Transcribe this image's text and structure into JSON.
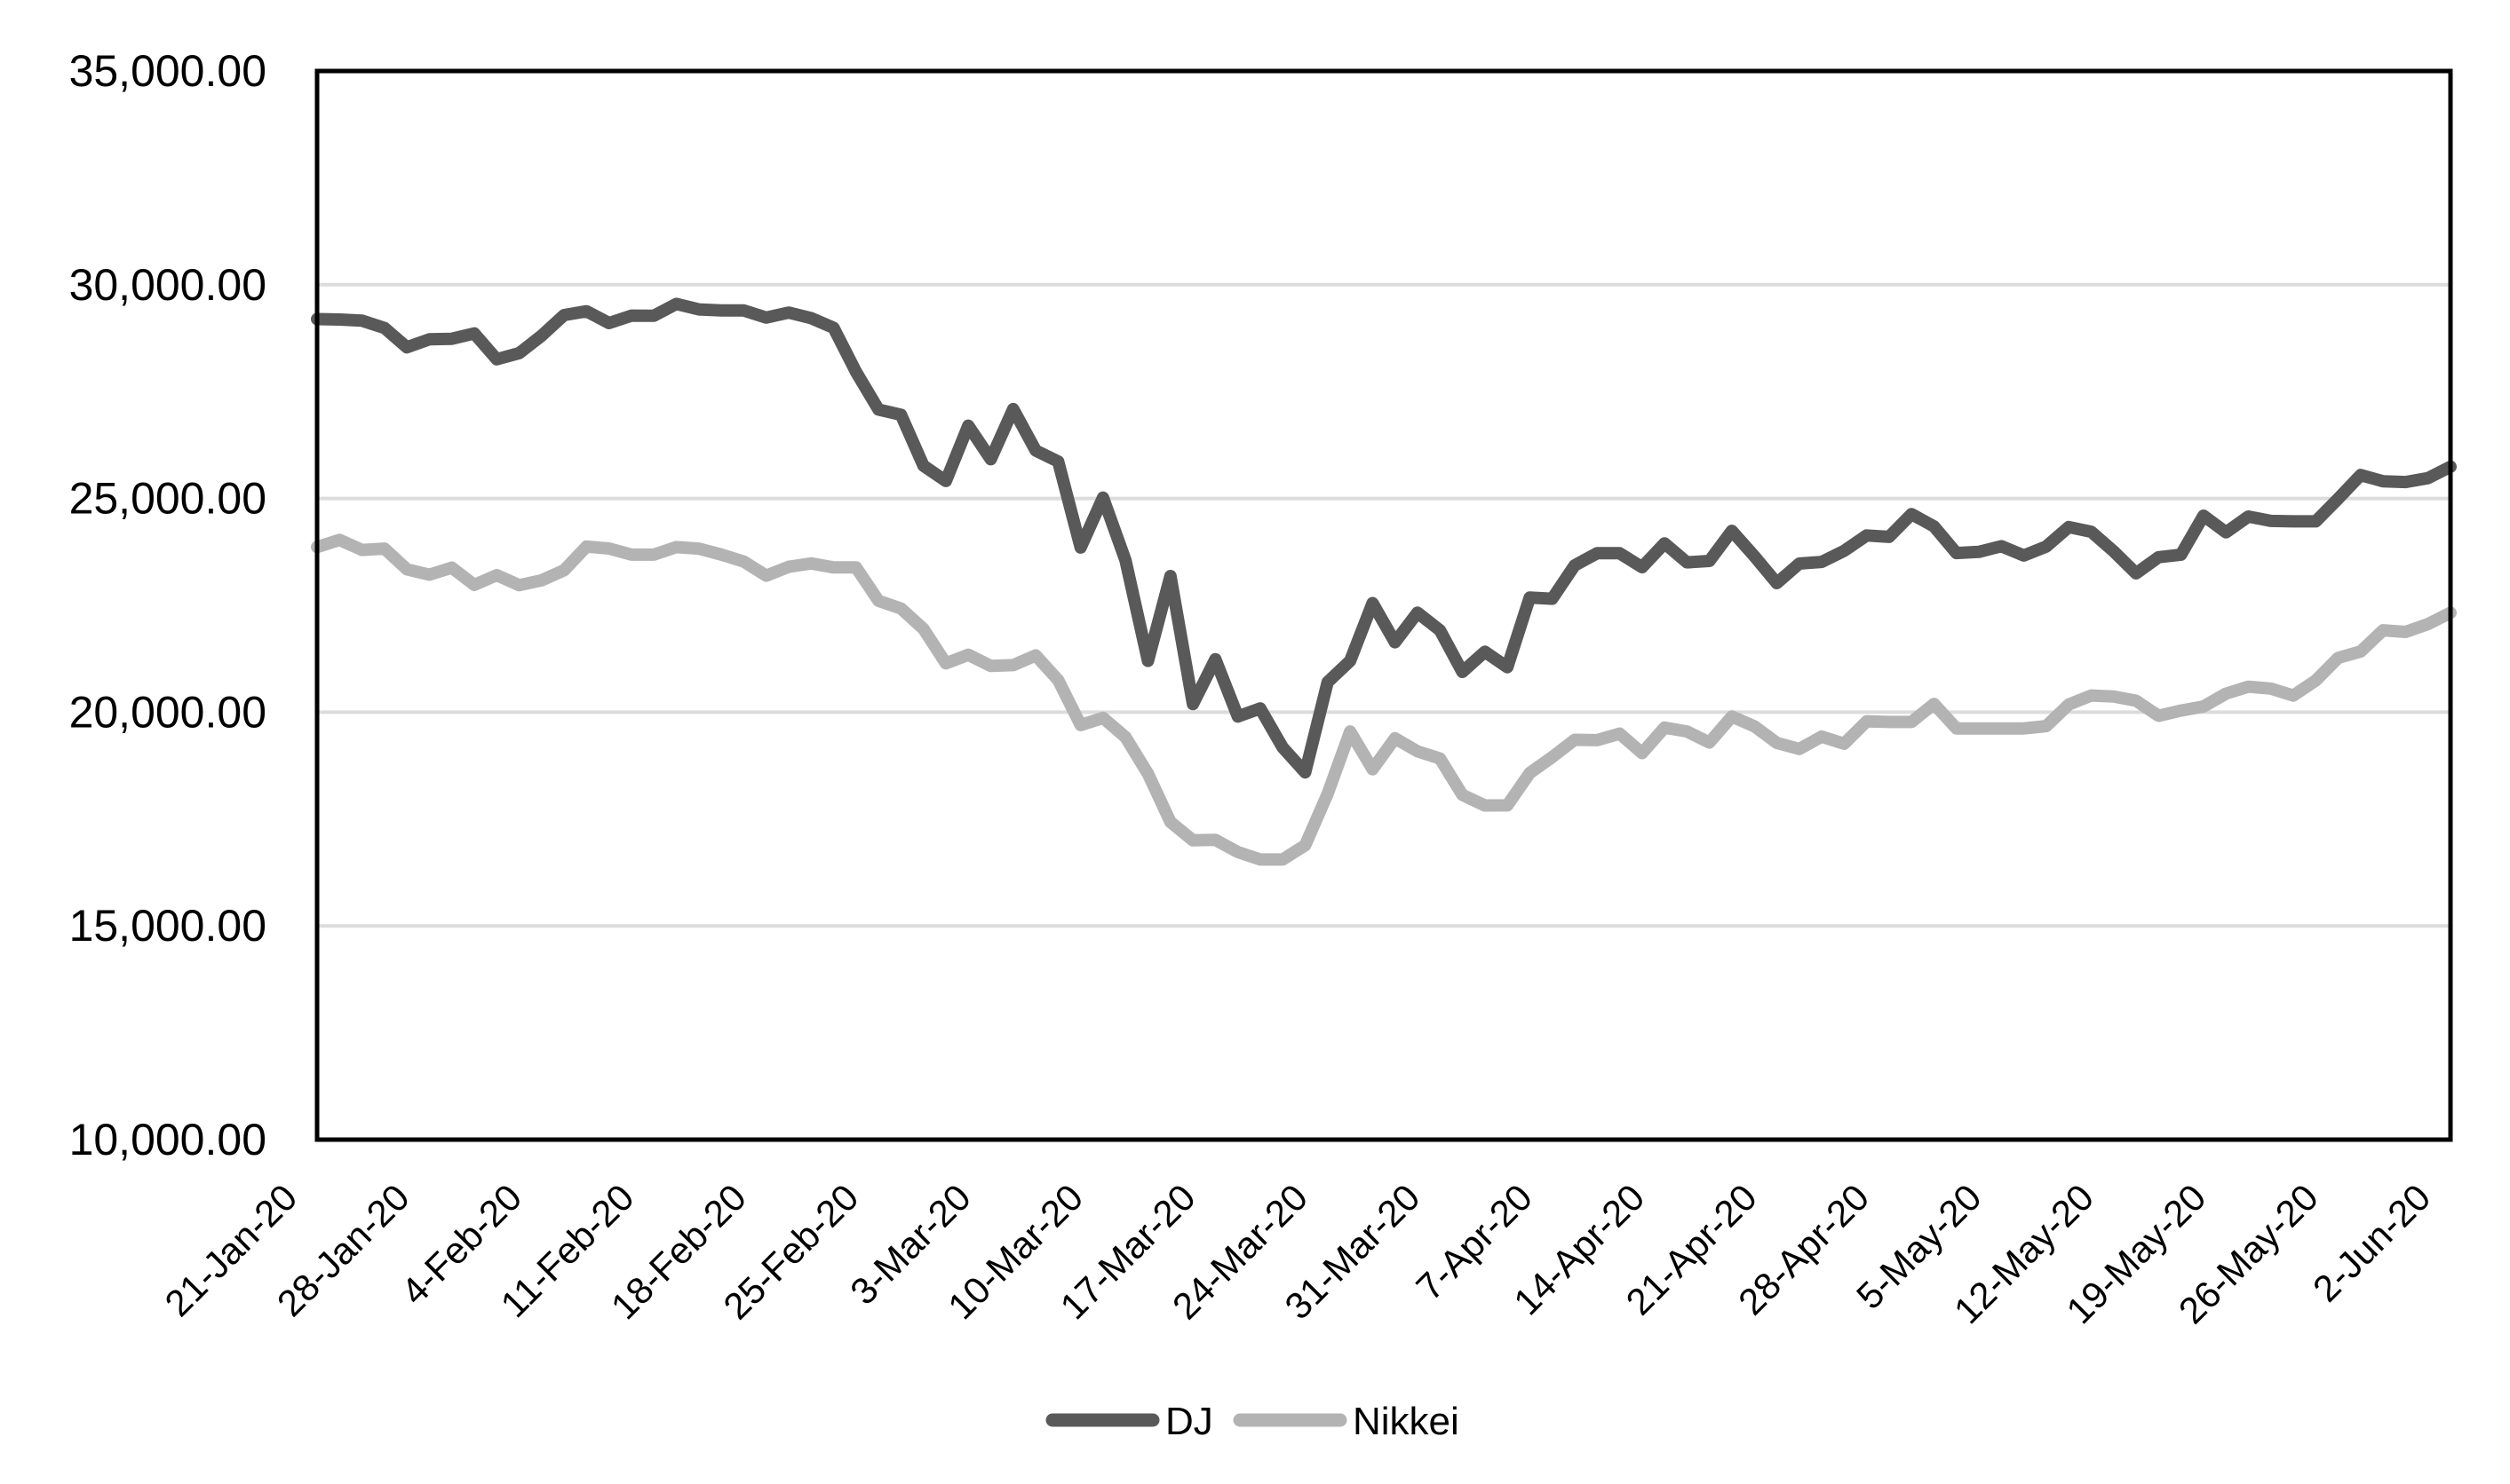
{
  "chart_data": {
    "type": "line",
    "x": [
      "21-Jan-20",
      "22-Jan-20",
      "23-Jan-20",
      "24-Jan-20",
      "27-Jan-20",
      "28-Jan-20",
      "29-Jan-20",
      "30-Jan-20",
      "31-Jan-20",
      "3-Feb-20",
      "4-Feb-20",
      "5-Feb-20",
      "6-Feb-20",
      "7-Feb-20",
      "10-Feb-20",
      "11-Feb-20",
      "12-Feb-20",
      "13-Feb-20",
      "14-Feb-20",
      "17-Feb-20",
      "18-Feb-20",
      "19-Feb-20",
      "20-Feb-20",
      "21-Feb-20",
      "24-Feb-20",
      "25-Feb-20",
      "26-Feb-20",
      "27-Feb-20",
      "28-Feb-20",
      "2-Mar-20",
      "3-Mar-20",
      "4-Mar-20",
      "5-Mar-20",
      "6-Mar-20",
      "9-Mar-20",
      "10-Mar-20",
      "11-Mar-20",
      "12-Mar-20",
      "13-Mar-20",
      "16-Mar-20",
      "17-Mar-20",
      "18-Mar-20",
      "19-Mar-20",
      "20-Mar-20",
      "23-Mar-20",
      "24-Mar-20",
      "25-Mar-20",
      "26-Mar-20",
      "27-Mar-20",
      "30-Mar-20",
      "31-Mar-20",
      "1-Apr-20",
      "2-Apr-20",
      "3-Apr-20",
      "6-Apr-20",
      "7-Apr-20",
      "8-Apr-20",
      "9-Apr-20",
      "10-Apr-20",
      "13-Apr-20",
      "14-Apr-20",
      "15-Apr-20",
      "16-Apr-20",
      "17-Apr-20",
      "20-Apr-20",
      "21-Apr-20",
      "22-Apr-20",
      "23-Apr-20",
      "24-Apr-20",
      "27-Apr-20",
      "28-Apr-20",
      "29-Apr-20",
      "30-Apr-20",
      "1-May-20",
      "4-May-20",
      "5-May-20",
      "6-May-20",
      "7-May-20",
      "8-May-20",
      "11-May-20",
      "12-May-20",
      "13-May-20",
      "14-May-20",
      "15-May-20",
      "18-May-20",
      "19-May-20",
      "20-May-20",
      "21-May-20",
      "22-May-20",
      "25-May-20",
      "26-May-20",
      "27-May-20",
      "28-May-20",
      "29-May-20",
      "1-Jun-20",
      "2-Jun-20"
    ],
    "x_tick_labels": [
      "21-Jan-20",
      "28-Jan-20",
      "4-Feb-20",
      "11-Feb-20",
      "18-Feb-20",
      "25-Feb-20",
      "3-Mar-20",
      "10-Mar-20",
      "17-Mar-20",
      "24-Mar-20",
      "31-Mar-20",
      "7-Apr-20",
      "14-Apr-20",
      "21-Apr-20",
      "28-Apr-20",
      "5-May-20",
      "12-May-20",
      "19-May-20",
      "26-May-20",
      "2-Jun-20"
    ],
    "series": [
      {
        "name": "DJ",
        "color": "#595959",
        "values": [
          29196.04,
          29186.27,
          29160.09,
          28989.73,
          28535.8,
          28722.85,
          28734.45,
          28859.44,
          28256.03,
          28399.81,
          28807.63,
          29290.85,
          29379.77,
          29102.51,
          29276.82,
          29276.34,
          29551.42,
          29423.31,
          29398.08,
          29398.08,
          29232.19,
          29348.03,
          29219.98,
          28992.41,
          27960.8,
          27081.36,
          26957.59,
          25766.64,
          25409.36,
          26703.32,
          25917.41,
          27090.86,
          26121.28,
          25864.78,
          23851.02,
          25018.16,
          23553.22,
          21200.62,
          23185.62,
          20188.52,
          21237.38,
          19898.92,
          20087.19,
          19173.98,
          18591.93,
          20704.91,
          21200.55,
          22552.17,
          21636.78,
          22327.48,
          21917.16,
          20943.51,
          21413.44,
          21052.53,
          22679.99,
          22653.86,
          23433.57,
          23719.37,
          23719.37,
          23390.77,
          23949.76,
          23504.35,
          23537.68,
          24242.49,
          23650.44,
          23018.88,
          23475.82,
          23515.26,
          23775.27,
          24133.78,
          24101.55,
          24633.86,
          24345.72,
          23723.69,
          23749.76,
          23883.09,
          23664.64,
          23875.89,
          24331.32,
          24221.99,
          23764.78,
          23247.97,
          23625.34,
          23685.42,
          24597.37,
          24206.86,
          24575.9,
          24474.12,
          24465.16,
          24465.16,
          24995.11,
          25548.27,
          25400.64,
          25383.11,
          25475.02,
          25742.65
        ]
      },
      {
        "name": "Nikkei",
        "color": "#B3B3B3",
        "values": [
          23864.56,
          24031.35,
          23795.44,
          23827.18,
          23343.51,
          23215.71,
          23379.4,
          22977.75,
          23205.18,
          22971.94,
          23084.59,
          23319.56,
          23873.59,
          23827.98,
          23685.98,
          23685.98,
          23861.21,
          23827.73,
          23687.59,
          23523.24,
          23193.8,
          23400.7,
          23479.15,
          23386.74,
          23386.74,
          22605.41,
          22426.19,
          21948.23,
          21142.96,
          21344.08,
          21082.73,
          21100.06,
          21329.12,
          20749.75,
          19698.76,
          19867.12,
          19416.06,
          18559.63,
          17431.05,
          17002.04,
          17011.53,
          16726.55,
          16552.83,
          16552.83,
          16887.78,
          18092.35,
          19546.63,
          18664.6,
          19389.43,
          19084.97,
          18917.01,
          18065.41,
          17818.72,
          17820.19,
          18576.3,
          18950.18,
          19353.24,
          19345.77,
          19498.5,
          19043.4,
          19638.81,
          19550.09,
          19290.2,
          19897.26,
          19669.12,
          19280.78,
          19137.95,
          19429.44,
          19262.0,
          19783.22,
          19771.19,
          19771.19,
          20193.69,
          19619.35,
          19619.35,
          19619.35,
          19619.35,
          19674.77,
          20179.09,
          20390.66,
          20366.48,
          20267.05,
          19914.78,
          20037.47,
          20133.73,
          20433.45,
          20595.15,
          20552.31,
          20388.16,
          20741.65,
          21271.17,
          21419.23,
          21916.31,
          21877.89,
          22062.39,
          22325.61
        ]
      }
    ],
    "ylim": [
      10000,
      35000
    ],
    "y_ticks": [
      10000,
      15000,
      20000,
      25000,
      30000,
      35000
    ],
    "y_tick_labels": [
      "10,000.00",
      "15,000.00",
      "20,000.00",
      "25,000.00",
      "30,000.00",
      "35,000.00"
    ],
    "grid": true,
    "legend_position": "bottom"
  },
  "colors": {
    "gridline": "#DCDCDC",
    "frame": "#000000",
    "text": "#000000",
    "background": "#FFFFFF"
  }
}
